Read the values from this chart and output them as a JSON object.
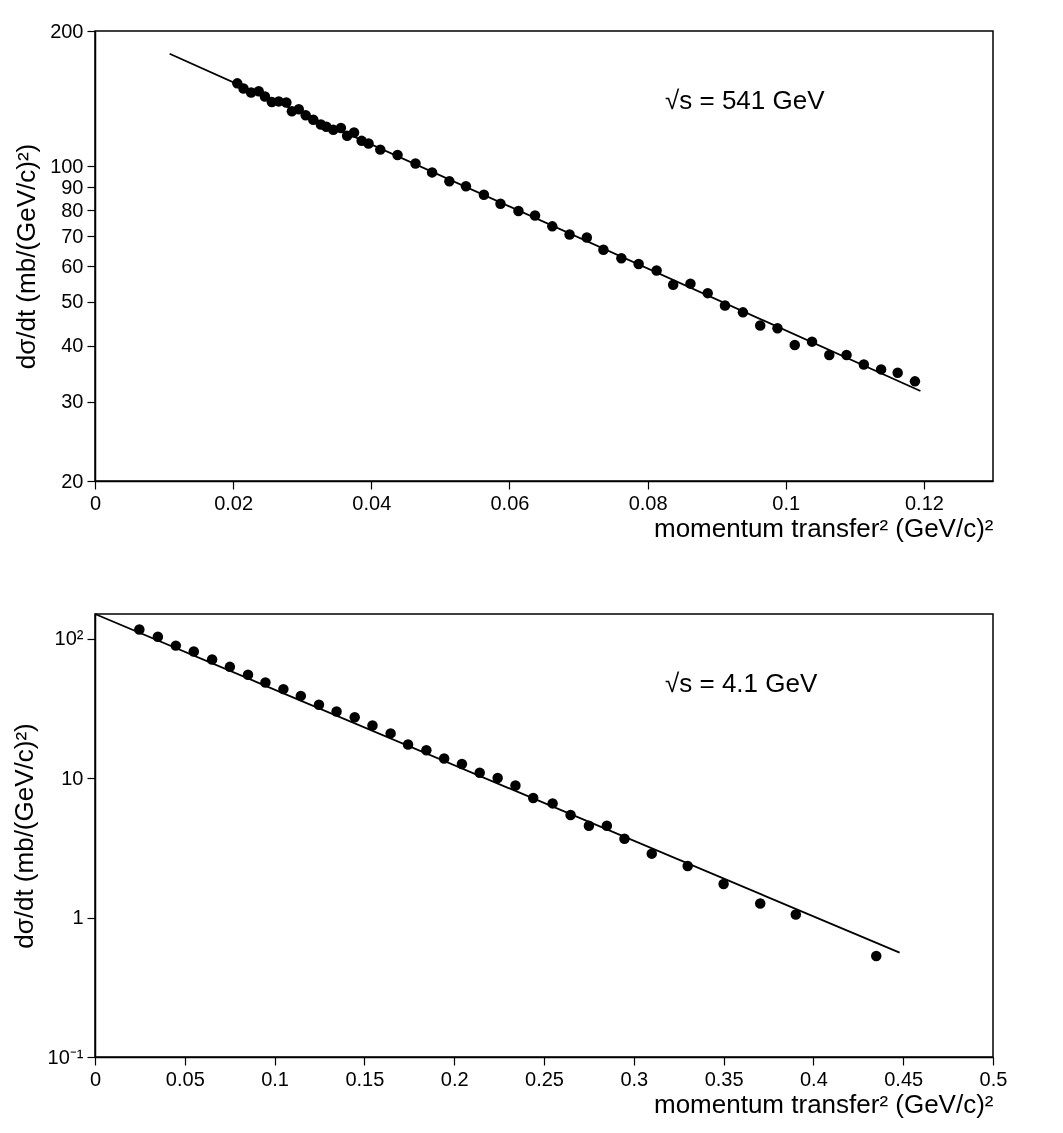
{
  "chart_data": [
    {
      "type": "scatter",
      "xlabel": "momentum transfer² (GeV/c)²",
      "ylabel": "dσ/dt (mb/(GeV/c)²)",
      "annotations": [
        "√s = 541 GeV"
      ],
      "log": "y",
      "grid": false,
      "marker": "circle",
      "xlim": [
        0,
        0.13
      ],
      "xticks": [
        0,
        0.02,
        0.04,
        0.06,
        0.08,
        0.1,
        0.12
      ],
      "ylim": [
        20,
        200
      ],
      "yticks": [
        20,
        30,
        40,
        50,
        60,
        70,
        80,
        90,
        100,
        200
      ],
      "series": [
        {
          "type": "scatter",
          "color": "#000000",
          "x": [
            0.0206,
            0.0215,
            0.0226,
            0.0237,
            0.0246,
            0.0256,
            0.0266,
            0.0277,
            0.0285,
            0.0295,
            0.0305,
            0.0316,
            0.0327,
            0.0335,
            0.0345,
            0.0356,
            0.0365,
            0.0375,
            0.0386,
            0.0396,
            0.0413,
            0.0438,
            0.0464,
            0.0488,
            0.0513,
            0.0537,
            0.0563,
            0.0587,
            0.0613,
            0.0637,
            0.0662,
            0.0687,
            0.0712,
            0.0736,
            0.0762,
            0.0787,
            0.0813,
            0.0837,
            0.0862,
            0.0887,
            0.0912,
            0.0938,
            0.0963,
            0.0988,
            0.1013,
            0.1038,
            0.1063,
            0.1088,
            0.1113,
            0.1138,
            0.1162,
            0.1187
          ],
          "values": [
            153,
            149,
            146,
            147,
            143,
            139,
            139.5,
            138.7,
            132.7,
            134,
            130,
            127,
            124,
            122.5,
            120.6,
            121.7,
            117,
            119,
            114,
            112.5,
            109,
            106,
            101.5,
            97,
            92.7,
            90.4,
            86.5,
            82.6,
            79.6,
            77.8,
            73.6,
            70.6,
            69.5,
            65.3,
            62.5,
            60.7,
            58.7,
            54.6,
            54.9,
            52.3,
            49.1,
            47.4,
            44.3,
            43.7,
            40.1,
            40.8,
            38.1,
            38.1,
            36.3,
            35.4,
            34.8,
            33.3
          ]
        },
        {
          "type": "line",
          "color": "#000000",
          "marker": "none",
          "x": [
            0.0108,
            0.1195
          ],
          "values": [
            178,
            31.7
          ]
        }
      ]
    },
    {
      "type": "scatter",
      "xlabel": "momentum transfer² (GeV/c)²",
      "ylabel": "dσ/dt (mb/(GeV/c)²)",
      "annotations": [
        "√s = 4.1 GeV"
      ],
      "log": "y",
      "grid": false,
      "marker": "circle",
      "xlim": [
        0,
        0.5
      ],
      "xticks": [
        0,
        0.05,
        0.1,
        0.15,
        0.2,
        0.25,
        0.3,
        0.35,
        0.4,
        0.45,
        0.5
      ],
      "ylim": [
        0.1,
        150
      ],
      "yticks": [
        {
          "value": 0.1,
          "label": "10⁻¹"
        },
        1,
        10,
        {
          "value": 100,
          "label": "10²"
        }
      ],
      "series": [
        {
          "type": "scatter",
          "color": "#000000",
          "x": [
            0.0247,
            0.035,
            0.045,
            0.055,
            0.0652,
            0.0751,
            0.0852,
            0.0949,
            0.1049,
            0.1146,
            0.1247,
            0.1345,
            0.1446,
            0.1545,
            0.1646,
            0.1743,
            0.1845,
            0.1944,
            0.2043,
            0.2142,
            0.2242,
            0.2341,
            0.244,
            0.2548,
            0.2648,
            0.275,
            0.285,
            0.2948,
            0.31,
            0.33,
            0.35,
            0.3704,
            0.3902,
            0.435
          ],
          "values": [
            116,
            103,
            89,
            80.7,
            70.8,
            62.7,
            55,
            48.4,
            43.4,
            38.8,
            33.5,
            30,
            27.3,
            23.8,
            20.9,
            17.4,
            15.8,
            13.8,
            12.6,
            10.9,
            10,
            8.85,
            7.2,
            6.58,
            5.43,
            4.55,
            4.55,
            3.67,
            2.87,
            2.34,
            1.74,
            1.26,
            1.05,
            0.53
          ]
        },
        {
          "type": "line",
          "color": "#000000",
          "marker": "none",
          "x": [
            0,
            0.448
          ],
          "values": [
            150,
            0.56
          ]
        }
      ]
    }
  ]
}
